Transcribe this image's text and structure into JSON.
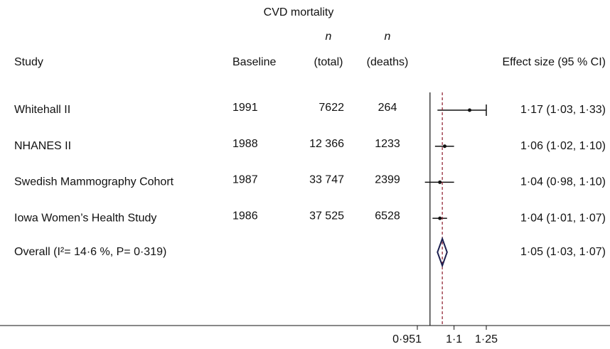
{
  "chart_data": {
    "type": "forest",
    "title": "CVD mortality",
    "columns": {
      "study": "Study",
      "baseline": "Baseline",
      "n_total": [
        "n",
        "(total)"
      ],
      "n_deaths": [
        "n",
        "(deaths)"
      ],
      "effect": "Effect size (95 % CI)"
    },
    "studies": [
      {
        "name": "Whitehall II",
        "baseline": "1991",
        "n_total": "7622",
        "n_deaths": "264",
        "es": 1.17,
        "lo": 1.03,
        "hi": 1.33,
        "label": "1·17 (1·03, 1·33)"
      },
      {
        "name": "NHANES II",
        "baseline": "1988",
        "n_total": "12 366",
        "n_deaths": "1233",
        "es": 1.06,
        "lo": 1.02,
        "hi": 1.1,
        "label": "1·06 (1·02, 1·10)"
      },
      {
        "name": "Swedish Mammography Cohort",
        "baseline": "1987",
        "n_total": "33 747",
        "n_deaths": "2399",
        "es": 1.04,
        "lo": 0.98,
        "hi": 1.1,
        "label": "1·04 (0·98, 1·10)"
      },
      {
        "name": "Iowa Women’s Health Study",
        "baseline": "1986",
        "n_total": "37 525",
        "n_deaths": "6528",
        "es": 1.04,
        "lo": 1.01,
        "hi": 1.07,
        "label": "1·04 (1·01, 1·07)"
      }
    ],
    "overall": {
      "name": "Overall (I²= 14·6 %, P= 0·319)",
      "es": 1.05,
      "lo": 1.03,
      "hi": 1.07,
      "label": "1·05 (1·03, 1·07)"
    },
    "null_line": 1,
    "xscale": "log",
    "xlim": [
      0.951,
      1.25
    ],
    "xticks": [
      {
        "value": 0.951,
        "label": "0·951"
      },
      {
        "value": 1.1,
        "label": "1·1"
      },
      {
        "value": 1.25,
        "label": "1·25"
      }
    ],
    "line_color": "#111111",
    "overall_line_color": "#8b1a2b",
    "diamond_color": "#1c1f4f"
  }
}
